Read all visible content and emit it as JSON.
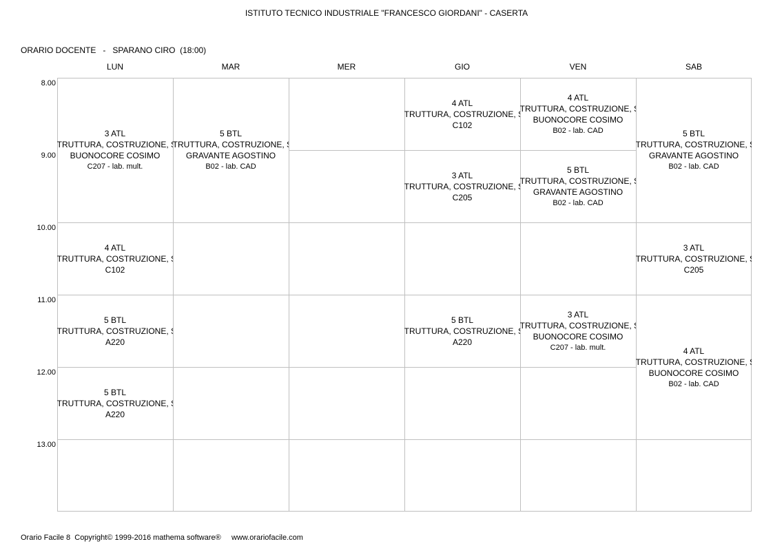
{
  "header": {
    "title": "ISTITUTO TECNICO INDUSTRIALE \"FRANCESCO GIORDANI\" - CASERTA",
    "teacher_line": "ORARIO DOCENTE   -   SPARANO CIRO  (18:00)"
  },
  "days": [
    "LUN",
    "MAR",
    "MER",
    "GIO",
    "VEN",
    "SAB"
  ],
  "hours": [
    "8.00",
    "9.00",
    "10.00",
    "11.00",
    "12.00",
    "13.00"
  ],
  "lessons": [
    {
      "day": 0,
      "start": 0,
      "span": 2,
      "lines": [
        "3 ATL",
        "STRUTTURA, COSTRUZIONE, SI",
        "BUONOCORE COSIMO",
        "C207 - lab. mult."
      ]
    },
    {
      "day": 0,
      "start": 2,
      "span": 1,
      "lines": [
        "4 ATL",
        "STRUTTURA, COSTRUZIONE, SI",
        "C102"
      ]
    },
    {
      "day": 0,
      "start": 3,
      "span": 1,
      "lines": [
        "5 BTL",
        "STRUTTURA, COSTRUZIONE, SI",
        "A220"
      ]
    },
    {
      "day": 0,
      "start": 4,
      "span": 1,
      "lines": [
        "5 BTL",
        "STRUTTURA, COSTRUZIONE, SI",
        "A220"
      ]
    },
    {
      "day": 1,
      "start": 0,
      "span": 2,
      "lines": [
        "5 BTL",
        "STRUTTURA, COSTRUZIONE, SI",
        "GRAVANTE AGOSTINO",
        "B02 - lab.  CAD"
      ]
    },
    {
      "day": 3,
      "start": 0,
      "span": 1,
      "lines": [
        "4 ATL",
        "STRUTTURA, COSTRUZIONE, SI",
        "C102"
      ]
    },
    {
      "day": 3,
      "start": 1,
      "span": 1,
      "lines": [
        "3 ATL",
        "STRUTTURA, COSTRUZIONE, SI",
        "C205"
      ]
    },
    {
      "day": 3,
      "start": 3,
      "span": 1,
      "lines": [
        "5 BTL",
        "STRUTTURA, COSTRUZIONE, SI",
        "A220"
      ]
    },
    {
      "day": 4,
      "start": 0,
      "span": 1,
      "lines": [
        "4 ATL",
        "STRUTTURA, COSTRUZIONE, SI",
        "BUONOCORE COSIMO",
        "B02 - lab.  CAD"
      ]
    },
    {
      "day": 4,
      "start": 1,
      "span": 1,
      "lines": [
        "5 BTL",
        "STRUTTURA, COSTRUZIONE, SI",
        "GRAVANTE AGOSTINO",
        "B02 - lab.  CAD"
      ]
    },
    {
      "day": 4,
      "start": 3,
      "span": 1,
      "lines": [
        "3 ATL",
        "STRUTTURA, COSTRUZIONE, SI",
        "BUONOCORE COSIMO",
        "C207 - lab. mult."
      ]
    },
    {
      "day": 5,
      "start": 0,
      "span": 2,
      "lines": [
        "5 BTL",
        "STRUTTURA, COSTRUZIONE, SI",
        "GRAVANTE AGOSTINO",
        "B02 - lab.  CAD"
      ]
    },
    {
      "day": 5,
      "start": 2,
      "span": 1,
      "lines": [
        "3 ATL",
        "STRUTTURA, COSTRUZIONE, SI",
        "C205"
      ]
    },
    {
      "day": 5,
      "start": 3,
      "span": 2,
      "lines": [
        "4 ATL",
        "STRUTTURA, COSTRUZIONE, SI",
        "BUONOCORE COSIMO",
        "B02 - lab.  CAD"
      ]
    }
  ],
  "footer": "Orario Facile 8  Copyright© 1999-2016 mathema software®     www.orariofacile.com"
}
